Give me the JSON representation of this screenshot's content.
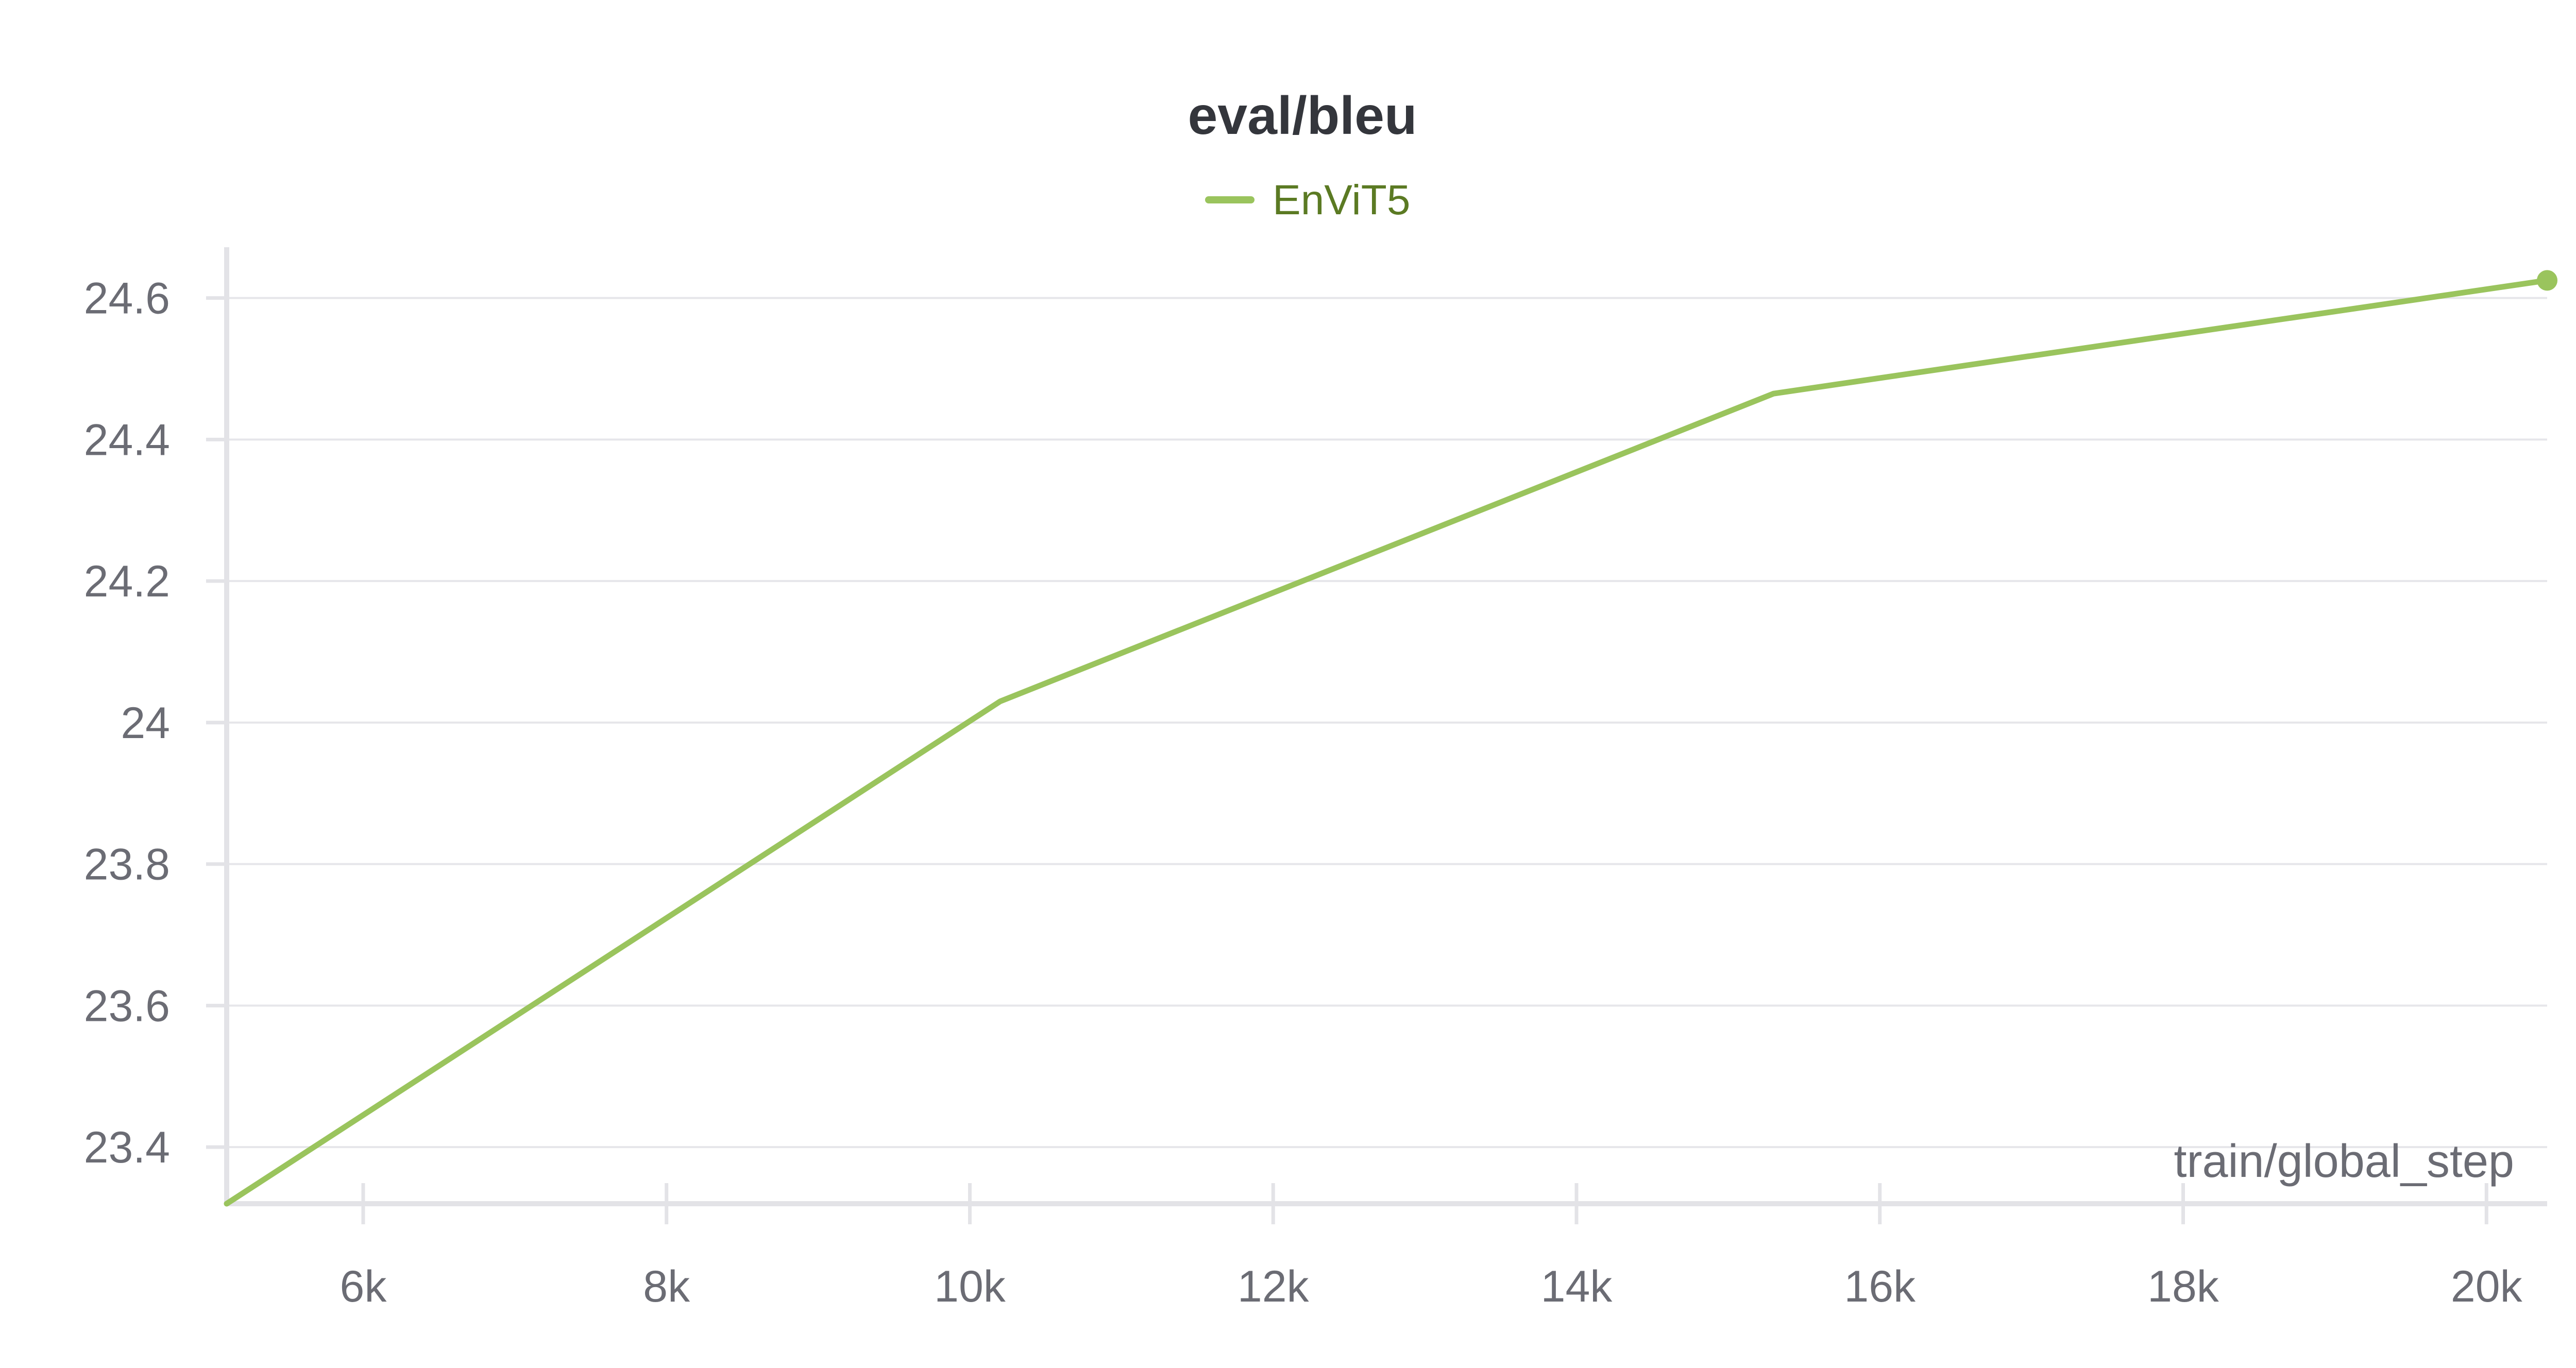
{
  "chart_data": {
    "type": "line",
    "title": "eval/bleu",
    "xlabel": "train/global_step",
    "ylabel": "",
    "xlim": [
      5100,
      20400
    ],
    "ylim": [
      23.32,
      24.65
    ],
    "x_ticks": [
      6000,
      8000,
      10000,
      12000,
      14000,
      16000,
      18000,
      20000
    ],
    "x_tick_labels": [
      "6k",
      "8k",
      "10k",
      "12k",
      "14k",
      "16k",
      "18k",
      "20k"
    ],
    "y_ticks": [
      23.4,
      23.6,
      23.8,
      24.0,
      24.2,
      24.4,
      24.6
    ],
    "y_tick_labels": [
      "23.4",
      "23.6",
      "23.8",
      "24",
      "24.2",
      "24.4",
      "24.6"
    ],
    "grid": true,
    "legend_position": "top-center",
    "series": [
      {
        "name": "EnViT5",
        "color": "#9ac45d",
        "x": [
          5100,
          10200,
          15300,
          20400
        ],
        "y": [
          23.32,
          24.03,
          24.465,
          24.625
        ]
      }
    ]
  }
}
